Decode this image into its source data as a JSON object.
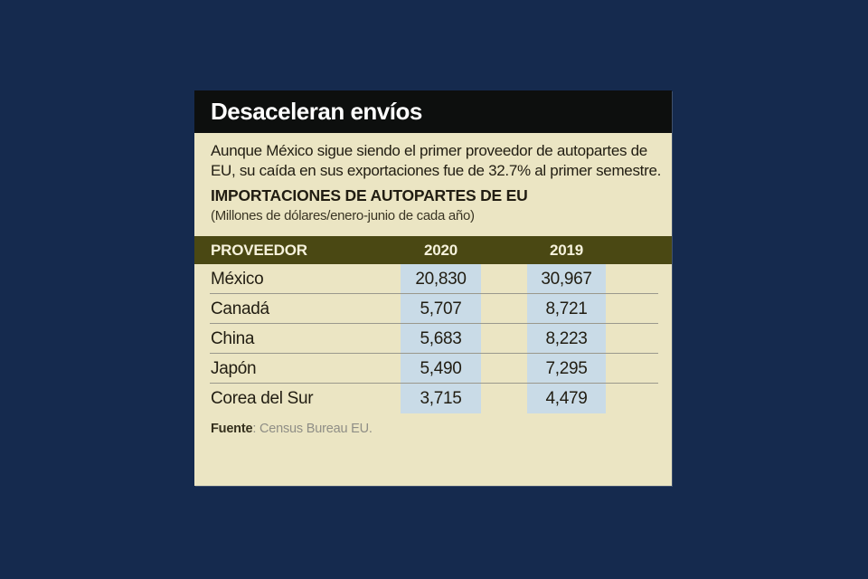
{
  "colors": {
    "page_bg": "#152a4e",
    "header_bg": "#0d0f0e",
    "header_text": "#ffffff",
    "body_bg": "#ebe5c3",
    "table_header_bg": "#4a4813",
    "table_header_text": "#f6f2dc",
    "band_bg": "#c9dbe7",
    "text_dark": "#211d12",
    "row_line": "#9a988c",
    "source_gray": "#8f8e86"
  },
  "card": {
    "title": "Desaceleran envíos",
    "intro": "Aunque México sigue siendo el primer proveedor de autopartes de EU, su caída en sus exportaciones fue de 32.7% al primer semestre.",
    "heading": "IMPORTACIONES DE AUTOPARTES DE EU",
    "subheading": "(Millones de dólares/enero-junio de cada año)",
    "source": {
      "label": "Fuente",
      "text": ": Census Bureau EU."
    }
  },
  "chart_data": {
    "type": "table",
    "title": "IMPORTACIONES DE AUTOPARTES DE EU",
    "subtitle": "Millones de dólares/enero-junio de cada año",
    "columns": [
      "PROVEEDOR",
      "2020",
      "2019"
    ],
    "rows": [
      {
        "proveedor": "México",
        "y2020": "20,830",
        "y2019": "30,967"
      },
      {
        "proveedor": "Canadá",
        "y2020": "5,707",
        "y2019": "8,721"
      },
      {
        "proveedor": "China",
        "y2020": "5,683",
        "y2019": "8,223"
      },
      {
        "proveedor": "Japón",
        "y2020": "5,490",
        "y2019": "7,295"
      },
      {
        "proveedor": "Corea del Sur",
        "y2020": "3,715",
        "y2019": "4,479"
      }
    ],
    "source": "Census Bureau EU."
  }
}
